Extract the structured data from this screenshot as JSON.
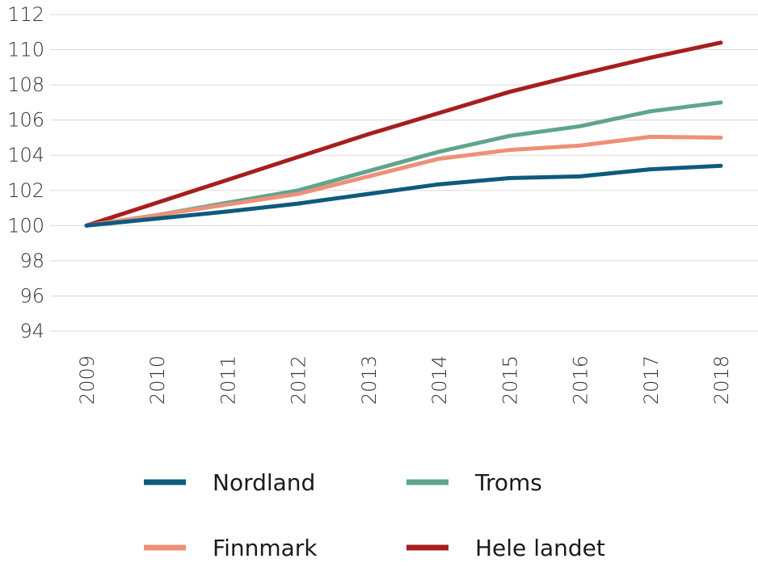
{
  "chart_data": {
    "type": "line",
    "title": "",
    "xlabel": "",
    "ylabel": "",
    "x": [
      "2009",
      "2010",
      "2011",
      "2012",
      "2013",
      "2014",
      "2015",
      "2016",
      "2017",
      "2018"
    ],
    "ylim": [
      94,
      112
    ],
    "yticks": [
      94,
      96,
      98,
      100,
      102,
      104,
      106,
      108,
      110,
      112
    ],
    "grid": true,
    "legend_position": "bottom",
    "series": [
      {
        "name": "Nordland",
        "color": "#0e5a7e",
        "values": [
          100,
          100.4,
          100.8,
          101.25,
          101.8,
          102.35,
          102.7,
          102.8,
          103.2,
          103.4
        ]
      },
      {
        "name": "Troms",
        "color": "#5fa58e",
        "values": [
          100,
          100.6,
          101.3,
          102.0,
          103.1,
          104.2,
          105.1,
          105.65,
          106.5,
          107.0
        ]
      },
      {
        "name": "Finnmark",
        "color": "#ee9078",
        "values": [
          100,
          100.6,
          101.2,
          101.8,
          102.8,
          103.8,
          104.3,
          104.55,
          105.05,
          105.0
        ]
      },
      {
        "name": "Hele landet",
        "color": "#a61e1e",
        "values": [
          100,
          101.3,
          102.6,
          103.9,
          105.2,
          106.4,
          107.6,
          108.6,
          109.55,
          110.4
        ]
      }
    ]
  }
}
